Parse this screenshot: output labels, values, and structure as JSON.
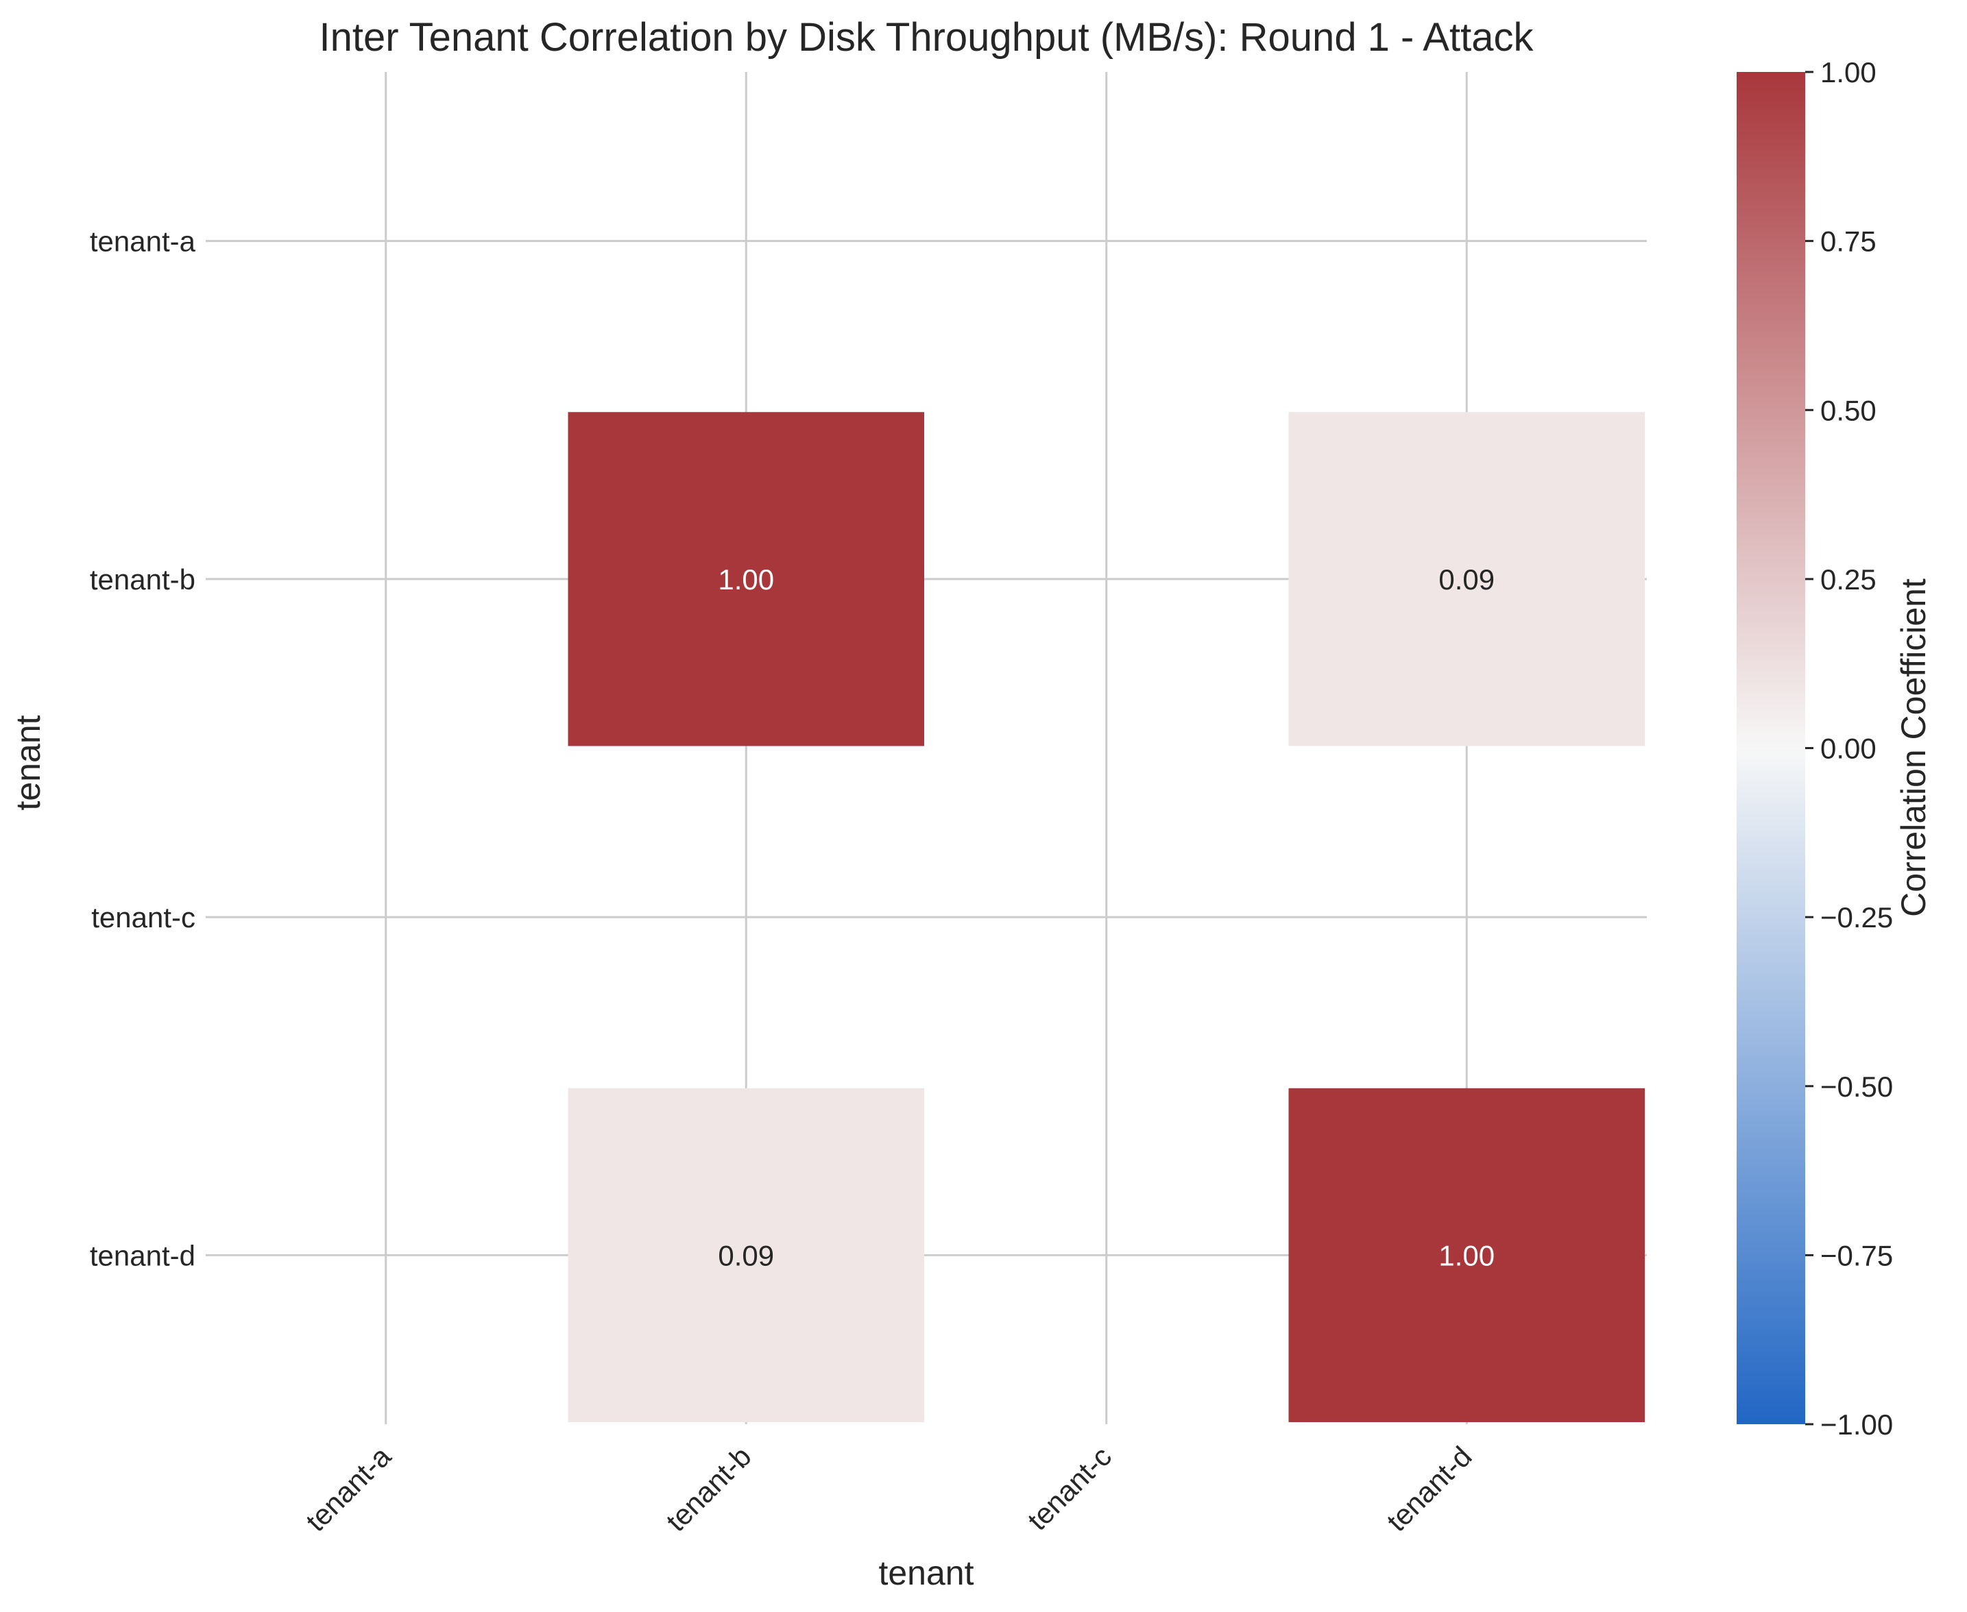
{
  "chart_data": {
    "type": "heatmap",
    "title": "Inter Tenant Correlation by Disk Throughput (MB/s): Round 1 - Attack",
    "xlabel": "tenant",
    "ylabel": "tenant",
    "x_categories": [
      "tenant-a",
      "tenant-b",
      "tenant-c",
      "tenant-d"
    ],
    "y_categories": [
      "tenant-a",
      "tenant-b",
      "tenant-c",
      "tenant-d"
    ],
    "values": [
      [
        null,
        null,
        null,
        null
      ],
      [
        null,
        1.0,
        null,
        0.09
      ],
      [
        null,
        null,
        null,
        null
      ],
      [
        null,
        0.09,
        null,
        1.0
      ]
    ],
    "cell_label_format": "2 decimals",
    "colorbar": {
      "label": "Correlation Coefficient",
      "range": [
        -1.0,
        1.0
      ],
      "ticks": [
        "1.00",
        "0.75",
        "0.50",
        "0.25",
        "0.00",
        "−0.25",
        "−0.50",
        "−0.75",
        "−1.00"
      ],
      "tick_values": [
        1.0,
        0.75,
        0.5,
        0.25,
        0.0,
        -0.25,
        -0.5,
        -0.75,
        -1.0
      ],
      "colors": [
        "#2166c4",
        "#f7f7f7",
        "#a8373c"
      ]
    },
    "grid": true
  }
}
